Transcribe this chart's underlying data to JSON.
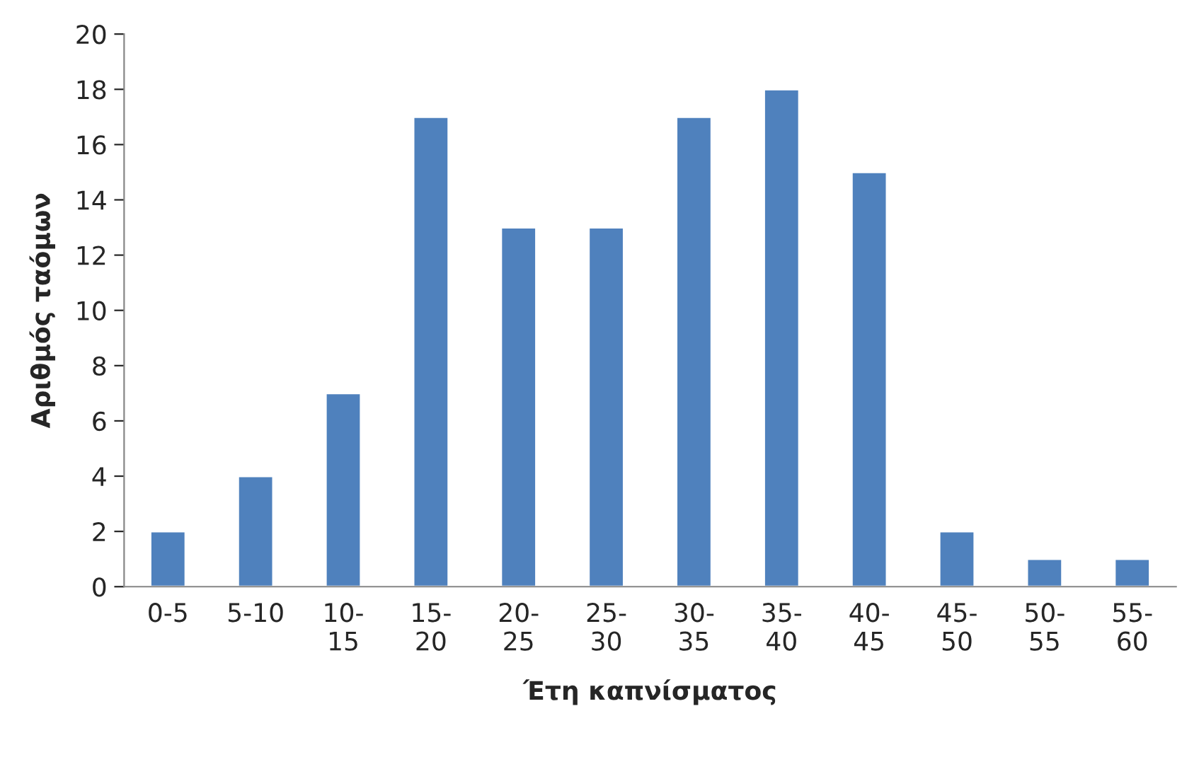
{
  "chart_data": {
    "type": "bar",
    "xlabel": "Έτη καπνίσματος",
    "ylabel": "Αριθμός ταόμων",
    "categories": [
      "0-5",
      "5-10",
      "10-15",
      "15-20",
      "20-25",
      "25-30",
      "30-35",
      "35-40",
      "40-45",
      "45-50",
      "50-55",
      "55-60"
    ],
    "values": [
      2,
      4,
      7,
      17,
      13,
      13,
      17,
      18,
      15,
      2,
      1,
      1
    ],
    "color": "#4f81bd",
    "ylim": [
      0,
      20
    ],
    "yticks": [
      0,
      2,
      4,
      6,
      8,
      10,
      12,
      14,
      16,
      18,
      20
    ]
  }
}
